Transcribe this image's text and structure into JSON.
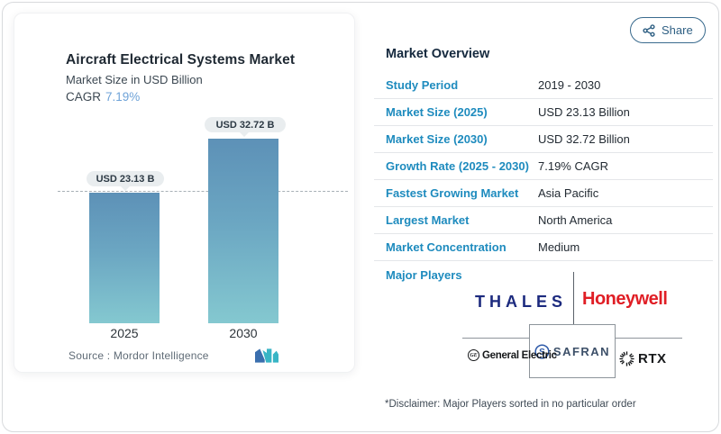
{
  "share": {
    "label": "Share"
  },
  "chart_card": {
    "title": "Aircraft Electrical Systems Market",
    "subtitle": "Market Size in USD Billion",
    "cagr_label": "CAGR",
    "cagr_value": "7.19%",
    "source_line": "Source :  Mordor Intelligence"
  },
  "chart_data": {
    "type": "bar",
    "categories": [
      "2025",
      "2030"
    ],
    "values": [
      23.13,
      32.72
    ],
    "bar_labels": [
      "USD 23.13 B",
      "USD 32.72 B"
    ],
    "title": "Aircraft Electrical Systems Market",
    "ylabel": "Market Size in USD Billion",
    "reference_line": 23.13,
    "legend": "none",
    "grid": "off",
    "colors": {
      "bar_gradient_top": "#5d91b7",
      "bar_gradient_bottom": "#84c8d0",
      "label_pill_bg": "#e9edef"
    }
  },
  "overview": {
    "heading": "Market Overview",
    "rows": [
      {
        "label": "Study Period",
        "value": "2019 - 2030"
      },
      {
        "label": "Market Size (2025)",
        "value": "USD 23.13 Billion"
      },
      {
        "label": "Market Size (2030)",
        "value": "USD 32.72 Billion"
      },
      {
        "label": "Growth Rate (2025 - 2030)",
        "value": "7.19% CAGR"
      },
      {
        "label": "Fastest Growing Market",
        "value": "Asia Pacific"
      },
      {
        "label": "Largest Market",
        "value": "North America"
      },
      {
        "label": "Market Concentration",
        "value": "Medium"
      }
    ],
    "major_players_label": "Major Players",
    "players": [
      "THALES",
      "Honeywell",
      "General Electric",
      "SAFRAN",
      "RTX"
    ],
    "player_initials": {
      "ge_monogram": "GE",
      "safran_initial": "S"
    },
    "disclaimer": "*Disclaimer: Major Players sorted in no particular order"
  },
  "colors": {
    "accent_blue": "#1e8bbe",
    "heading_navy": "#15293e",
    "cagr_value_blue": "#6fa3d8",
    "thales_navy": "#1c2a7e",
    "honeywell_red": "#e01e25",
    "safran_slate": "#3d5069",
    "share_border": "#3a6b8e"
  }
}
